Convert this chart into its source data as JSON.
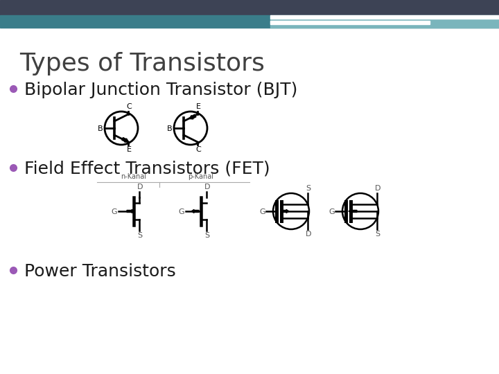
{
  "title": "Types of Transistors",
  "bullet1": "Bipolar Junction Transistor (BJT)",
  "bullet2": "Field Effect Transistors (FET)",
  "bullet3": "Power Transistors",
  "title_color": "#404040",
  "bullet_color": "#1a1a1a",
  "dot_color": "#9b59b6",
  "bg_color": "#ffffff",
  "header_dark": "#3d4355",
  "header_teal1": "#3a7d8a",
  "header_teal2": "#7ab5bc",
  "header_white": "#ffffff",
  "title_fontsize": 26,
  "bullet_fontsize": 18,
  "label_fontsize": 8,
  "kanal_fontsize": 7
}
